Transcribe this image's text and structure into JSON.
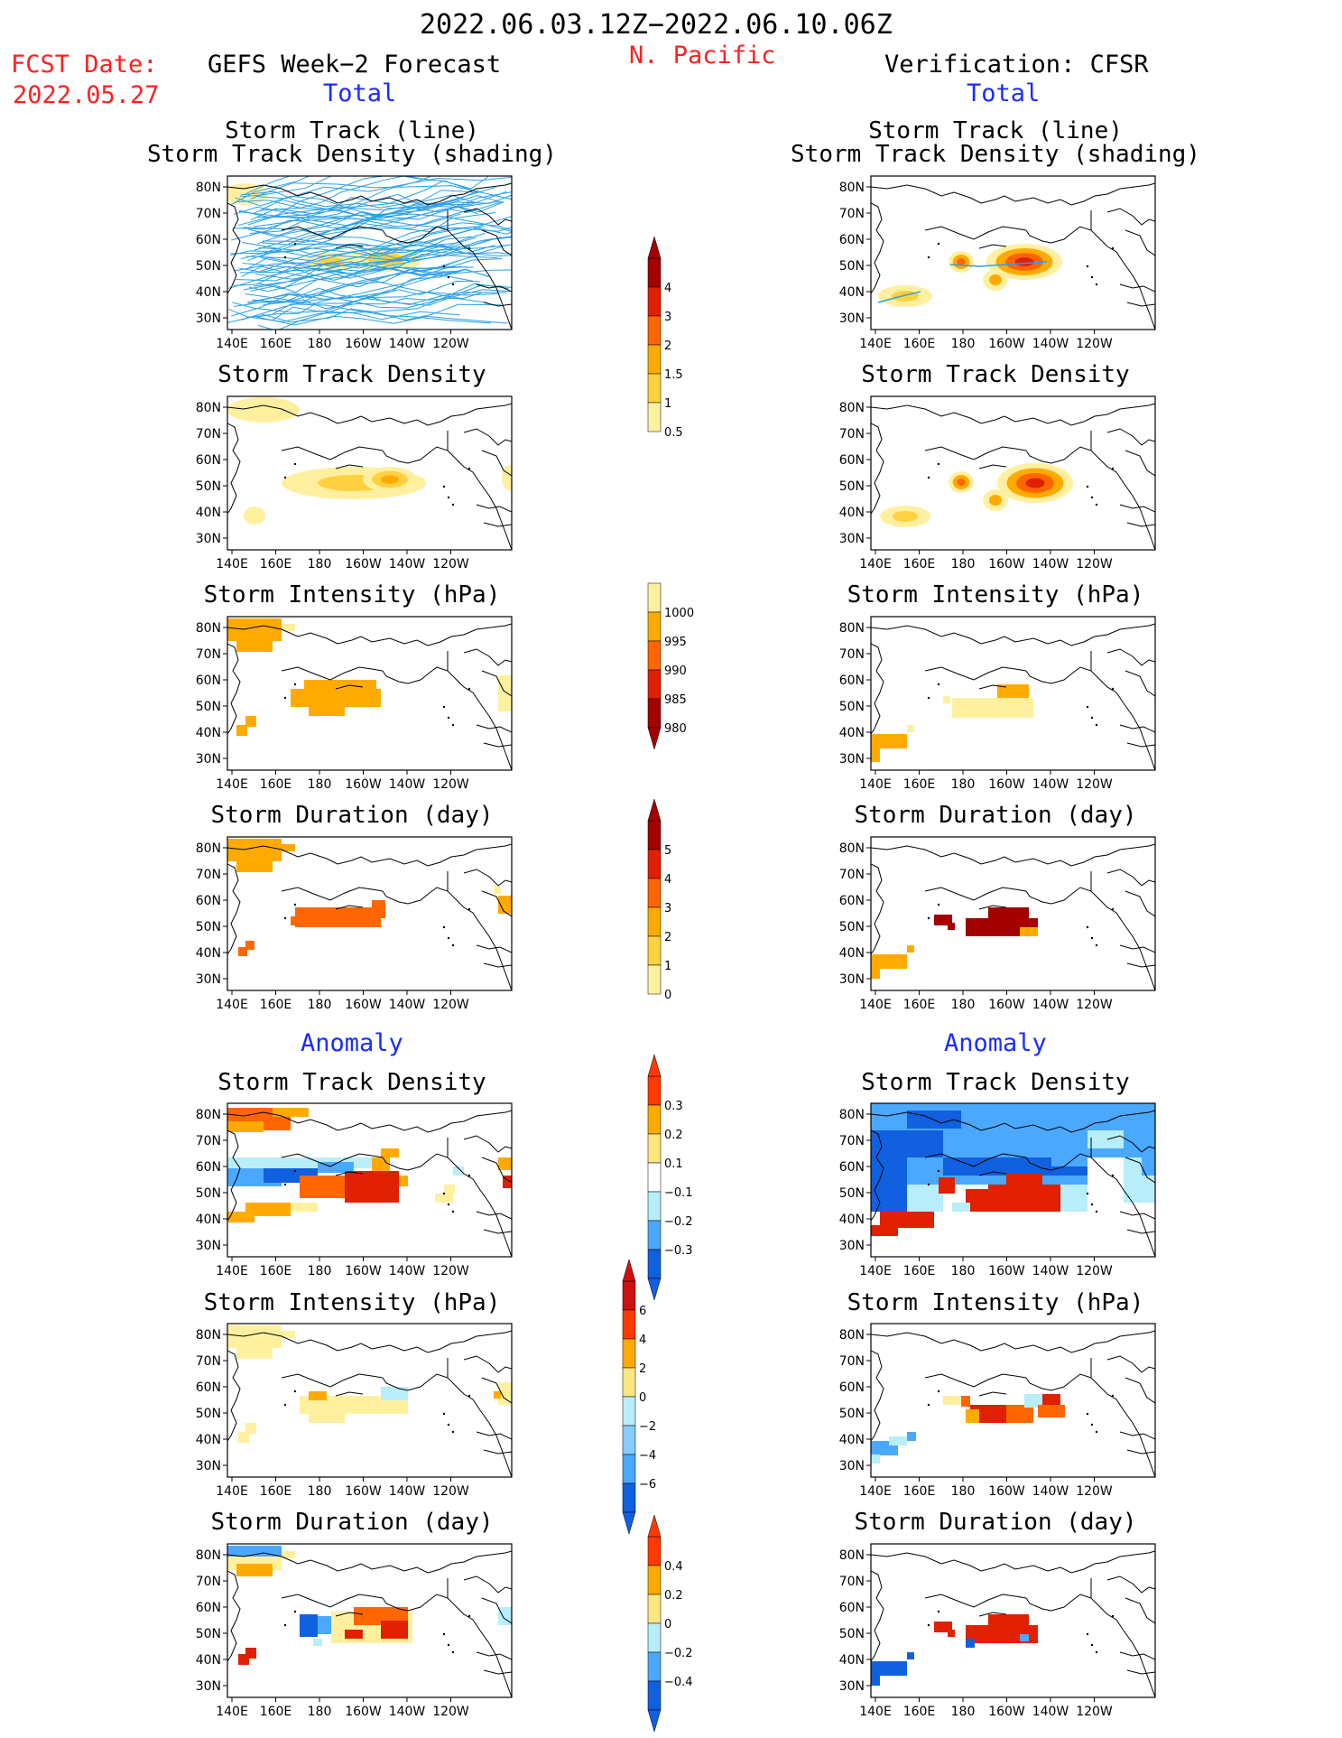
{
  "header": {
    "period": "2022.06.03.12Z−2022.06.10.06Z",
    "region": "N. Pacific",
    "fcst_label": "FCST Date:",
    "fcst_date": "2022.05.27",
    "left_title": "GEFS Week−2 Forecast",
    "right_title": "Verification: CFSR",
    "total_label": "Total",
    "anomaly_label": "Anomaly"
  },
  "axes": {
    "lon_ticks": [
      "140E",
      "160E",
      "180",
      "160W",
      "140W",
      "120W"
    ],
    "lat_ticks": [
      "80N",
      "70N",
      "60N",
      "50N",
      "40N",
      "30N"
    ]
  },
  "panel_titles": {
    "track": [
      "Storm Track (line)",
      "Storm Track Density (shading)"
    ],
    "density": "Storm Track Density",
    "intensity": "Storm Intensity (hPa)",
    "duration": "Storm Duration (day)"
  },
  "colorbars": {
    "density": {
      "labels": [
        "4",
        "3",
        "2",
        "1.5",
        "1",
        "0.5"
      ],
      "colors": [
        "#a50000",
        "#e02000",
        "#ff6600",
        "#ffaa00",
        "#ffd040",
        "#fff0a0"
      ]
    },
    "intensity": {
      "labels": [
        "1000",
        "995",
        "990",
        "985",
        "980"
      ],
      "colors": [
        "#fff0a0",
        "#ffaa00",
        "#ff6600",
        "#e02000",
        "#a50000"
      ]
    },
    "duration": {
      "labels": [
        "5",
        "4",
        "3",
        "2",
        "1",
        "0"
      ],
      "colors": [
        "#a50000",
        "#e02000",
        "#ff6600",
        "#ffaa00",
        "#ffd040",
        "#fff0a0"
      ]
    },
    "anom_density": {
      "labels": [
        "0.3",
        "0.2",
        "0.1",
        "−0.1",
        "−0.2",
        "−0.3"
      ],
      "colors": [
        "#ff3a00",
        "#ffaa00",
        "#ffe680",
        "#ffffff",
        "#b8eefa",
        "#4aa8ff",
        "#1060e0"
      ]
    },
    "anom_intensity": {
      "labels": [
        "6",
        "4",
        "2",
        "0",
        "−2",
        "−4",
        "−6"
      ],
      "colors": [
        "#d01010",
        "#ff3a00",
        "#ffaa00",
        "#ffe680",
        "#b8eefa",
        "#88ccff",
        "#4aa8ff",
        "#1060e0"
      ]
    },
    "anom_duration": {
      "labels": [
        "0.4",
        "0.2",
        "0",
        "−0.2",
        "−0.4"
      ],
      "colors": [
        "#ff3a00",
        "#ffaa00",
        "#ffe680",
        "#b8eefa",
        "#4aa8ff",
        "#1060e0"
      ]
    }
  },
  "palette": {
    "light_yellow": "#fff0a0",
    "yellow": "#ffd040",
    "orange": "#ffaa00",
    "dark_orange": "#ff6600",
    "red": "#e02000",
    "dark_red": "#a50000",
    "track_blue": "#2aa0e8",
    "cyan_light": "#b8eefa",
    "blue_mid": "#4aa8ff",
    "blue_dark": "#1060e0"
  }
}
